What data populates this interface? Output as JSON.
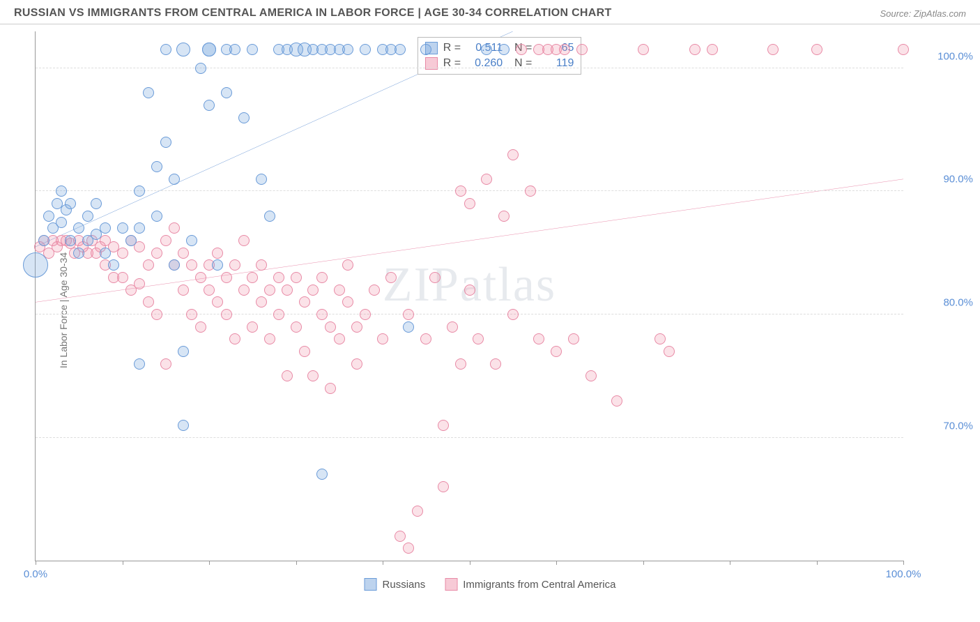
{
  "header": {
    "title": "RUSSIAN VS IMMIGRANTS FROM CENTRAL AMERICA IN LABOR FORCE | AGE 30-34 CORRELATION CHART",
    "source": "Source: ZipAtlas.com"
  },
  "axes": {
    "y_label": "In Labor Force | Age 30-34",
    "x_min": 0,
    "x_max": 100,
    "y_min": 60,
    "y_max": 103,
    "y_ticks": [
      70,
      80,
      90,
      100
    ],
    "y_tick_labels": [
      "70.0%",
      "80.0%",
      "90.0%",
      "100.0%"
    ],
    "x_ticks": [
      0,
      10,
      20,
      30,
      40,
      50,
      60,
      70,
      80,
      90,
      100
    ],
    "x_tick_labels": {
      "0": "0.0%",
      "100": "100.0%"
    }
  },
  "colors": {
    "series_a_fill": "rgba(123,168,222,0.30)",
    "series_a_stroke": "#6a9bd8",
    "series_a_line": "#2f6fc4",
    "series_b_fill": "rgba(238,138,164,0.25)",
    "series_b_stroke": "#e88aa6",
    "series_b_line": "#e05a86",
    "grid": "#dddddd",
    "axis": "#999999",
    "tick_text": "#5b8fd6",
    "title_text": "#555555",
    "source_text": "#888888",
    "background": "#ffffff"
  },
  "legend": {
    "a": "Russians",
    "b": "Immigrants from Central America"
  },
  "stats": {
    "a": {
      "R": "0.511",
      "N": "65"
    },
    "b": {
      "R": "0.260",
      "N": "119"
    }
  },
  "trend_lines": {
    "a": {
      "x1": 0,
      "y1": 85.5,
      "x2": 55,
      "y2": 103
    },
    "b": {
      "x1": 0,
      "y1": 81.0,
      "x2": 100,
      "y2": 91.0
    }
  },
  "watermark": "ZIPatlas",
  "point_radius_default": 8,
  "series_a_points": [
    [
      0,
      84,
      18
    ],
    [
      1,
      86
    ],
    [
      1.5,
      88
    ],
    [
      2,
      87
    ],
    [
      2.5,
      89
    ],
    [
      3,
      87.5
    ],
    [
      3,
      90
    ],
    [
      3.5,
      88.5
    ],
    [
      4,
      89
    ],
    [
      4,
      86
    ],
    [
      5,
      87
    ],
    [
      5,
      85
    ],
    [
      6,
      88
    ],
    [
      6,
      86
    ],
    [
      7,
      86.5
    ],
    [
      7,
      89
    ],
    [
      8,
      87
    ],
    [
      8,
      85
    ],
    [
      9,
      84
    ],
    [
      10,
      87
    ],
    [
      11,
      86
    ],
    [
      12,
      87
    ],
    [
      12,
      90
    ],
    [
      12,
      76
    ],
    [
      13,
      98
    ],
    [
      14,
      92
    ],
    [
      14,
      88
    ],
    [
      15,
      94
    ],
    [
      15,
      101.5
    ],
    [
      16,
      91
    ],
    [
      16,
      84
    ],
    [
      17,
      101.5,
      10
    ],
    [
      17,
      77
    ],
    [
      17,
      71
    ],
    [
      18,
      86
    ],
    [
      19,
      100
    ],
    [
      20,
      101.5,
      10
    ],
    [
      20,
      101.5,
      10
    ],
    [
      20,
      97
    ],
    [
      21,
      84
    ],
    [
      22,
      98
    ],
    [
      22,
      101.5
    ],
    [
      23,
      101.5
    ],
    [
      24,
      96
    ],
    [
      25,
      101.5
    ],
    [
      26,
      91
    ],
    [
      27,
      88
    ],
    [
      28,
      101.5
    ],
    [
      29,
      101.5
    ],
    [
      30,
      101.5,
      10
    ],
    [
      31,
      101.5,
      10
    ],
    [
      32,
      101.5
    ],
    [
      33,
      101.5
    ],
    [
      33,
      67
    ],
    [
      34,
      101.5
    ],
    [
      35,
      101.5
    ],
    [
      36,
      101.5
    ],
    [
      38,
      101.5
    ],
    [
      40,
      101.5
    ],
    [
      41,
      101.5
    ],
    [
      42,
      101.5
    ],
    [
      43,
      79
    ],
    [
      45,
      101.5
    ],
    [
      52,
      101.5
    ],
    [
      54,
      101.5
    ]
  ],
  "series_b_points": [
    [
      0.5,
      85.5
    ],
    [
      1,
      86
    ],
    [
      1.5,
      85
    ],
    [
      2,
      86
    ],
    [
      2.5,
      85.5
    ],
    [
      3,
      86
    ],
    [
      3.5,
      86
    ],
    [
      4,
      85.8
    ],
    [
      4.5,
      85
    ],
    [
      5,
      86
    ],
    [
      5.5,
      85.5
    ],
    [
      6,
      85
    ],
    [
      6.5,
      86
    ],
    [
      7,
      85
    ],
    [
      7.5,
      85.5
    ],
    [
      8,
      86
    ],
    [
      8,
      84
    ],
    [
      9,
      85.5
    ],
    [
      9,
      83
    ],
    [
      10,
      85
    ],
    [
      10,
      83
    ],
    [
      11,
      86
    ],
    [
      11,
      82
    ],
    [
      12,
      85.5
    ],
    [
      12,
      82.5
    ],
    [
      13,
      84
    ],
    [
      13,
      81
    ],
    [
      14,
      85
    ],
    [
      14,
      80
    ],
    [
      15,
      86
    ],
    [
      15,
      76
    ],
    [
      16,
      84
    ],
    [
      16,
      87
    ],
    [
      17,
      85
    ],
    [
      17,
      82
    ],
    [
      18,
      84
    ],
    [
      18,
      80
    ],
    [
      19,
      83
    ],
    [
      19,
      79
    ],
    [
      20,
      84
    ],
    [
      20,
      82
    ],
    [
      21,
      85
    ],
    [
      21,
      81
    ],
    [
      22,
      83
    ],
    [
      22,
      80
    ],
    [
      23,
      84
    ],
    [
      23,
      78
    ],
    [
      24,
      82
    ],
    [
      24,
      86
    ],
    [
      25,
      83
    ],
    [
      25,
      79
    ],
    [
      26,
      84
    ],
    [
      26,
      81
    ],
    [
      27,
      82
    ],
    [
      27,
      78
    ],
    [
      28,
      83
    ],
    [
      28,
      80
    ],
    [
      29,
      82
    ],
    [
      29,
      75
    ],
    [
      30,
      83
    ],
    [
      30,
      79
    ],
    [
      31,
      81
    ],
    [
      31,
      77
    ],
    [
      32,
      82
    ],
    [
      32,
      75
    ],
    [
      33,
      83
    ],
    [
      33,
      80
    ],
    [
      34,
      79
    ],
    [
      34,
      74
    ],
    [
      35,
      82
    ],
    [
      35,
      78
    ],
    [
      36,
      81
    ],
    [
      36,
      84
    ],
    [
      37,
      79
    ],
    [
      37,
      76
    ],
    [
      38,
      80
    ],
    [
      39,
      82
    ],
    [
      40,
      78
    ],
    [
      41,
      83
    ],
    [
      42,
      62
    ],
    [
      43,
      80
    ],
    [
      43,
      61
    ],
    [
      44,
      64
    ],
    [
      45,
      78
    ],
    [
      46,
      83
    ],
    [
      47,
      71
    ],
    [
      47,
      66
    ],
    [
      48,
      79
    ],
    [
      49,
      90
    ],
    [
      49,
      76
    ],
    [
      50,
      89
    ],
    [
      50,
      82
    ],
    [
      51,
      78
    ],
    [
      52,
      91
    ],
    [
      53,
      76
    ],
    [
      54,
      88
    ],
    [
      55,
      93
    ],
    [
      55,
      80
    ],
    [
      56,
      101.5
    ],
    [
      57,
      90
    ],
    [
      58,
      101.5
    ],
    [
      58,
      78
    ],
    [
      59,
      101.5
    ],
    [
      60,
      101.5
    ],
    [
      60,
      77
    ],
    [
      61,
      101.5
    ],
    [
      62,
      78
    ],
    [
      63,
      101.5
    ],
    [
      64,
      75
    ],
    [
      67,
      73
    ],
    [
      70,
      101.5
    ],
    [
      72,
      78
    ],
    [
      73,
      77
    ],
    [
      76,
      101.5
    ],
    [
      78,
      101.5
    ],
    [
      85,
      101.5
    ],
    [
      90,
      101.5
    ],
    [
      100,
      101.5
    ]
  ]
}
